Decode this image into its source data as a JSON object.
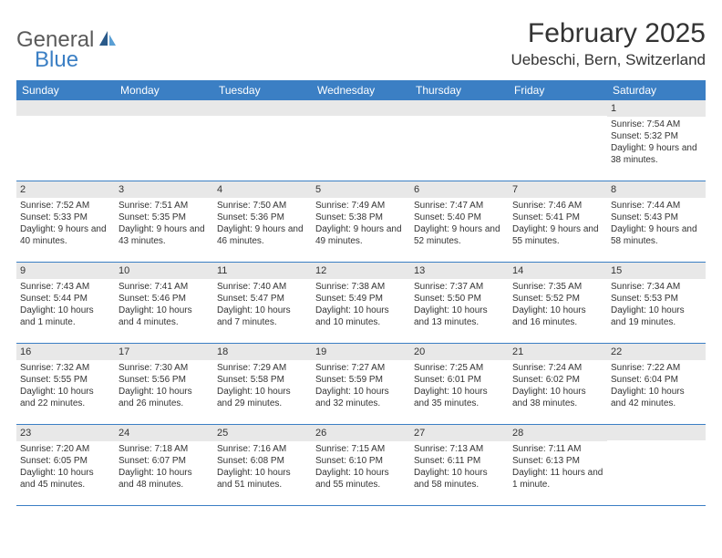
{
  "logo": {
    "general": "General",
    "blue": "Blue"
  },
  "title": {
    "month": "February 2025",
    "location": "Uebeschi, Bern, Switzerland"
  },
  "colors": {
    "header_bg": "#3b7fc4",
    "daynum_bg": "#e8e8e8",
    "text": "#333333",
    "logo_gray": "#5a5a5a",
    "logo_blue": "#3b7fc4"
  },
  "days_of_week": [
    "Sunday",
    "Monday",
    "Tuesday",
    "Wednesday",
    "Thursday",
    "Friday",
    "Saturday"
  ],
  "weeks": [
    [
      {
        "day": "",
        "sunrise": "",
        "sunset": "",
        "daylight": ""
      },
      {
        "day": "",
        "sunrise": "",
        "sunset": "",
        "daylight": ""
      },
      {
        "day": "",
        "sunrise": "",
        "sunset": "",
        "daylight": ""
      },
      {
        "day": "",
        "sunrise": "",
        "sunset": "",
        "daylight": ""
      },
      {
        "day": "",
        "sunrise": "",
        "sunset": "",
        "daylight": ""
      },
      {
        "day": "",
        "sunrise": "",
        "sunset": "",
        "daylight": ""
      },
      {
        "day": "1",
        "sunrise": "Sunrise: 7:54 AM",
        "sunset": "Sunset: 5:32 PM",
        "daylight": "Daylight: 9 hours and 38 minutes."
      }
    ],
    [
      {
        "day": "2",
        "sunrise": "Sunrise: 7:52 AM",
        "sunset": "Sunset: 5:33 PM",
        "daylight": "Daylight: 9 hours and 40 minutes."
      },
      {
        "day": "3",
        "sunrise": "Sunrise: 7:51 AM",
        "sunset": "Sunset: 5:35 PM",
        "daylight": "Daylight: 9 hours and 43 minutes."
      },
      {
        "day": "4",
        "sunrise": "Sunrise: 7:50 AM",
        "sunset": "Sunset: 5:36 PM",
        "daylight": "Daylight: 9 hours and 46 minutes."
      },
      {
        "day": "5",
        "sunrise": "Sunrise: 7:49 AM",
        "sunset": "Sunset: 5:38 PM",
        "daylight": "Daylight: 9 hours and 49 minutes."
      },
      {
        "day": "6",
        "sunrise": "Sunrise: 7:47 AM",
        "sunset": "Sunset: 5:40 PM",
        "daylight": "Daylight: 9 hours and 52 minutes."
      },
      {
        "day": "7",
        "sunrise": "Sunrise: 7:46 AM",
        "sunset": "Sunset: 5:41 PM",
        "daylight": "Daylight: 9 hours and 55 minutes."
      },
      {
        "day": "8",
        "sunrise": "Sunrise: 7:44 AM",
        "sunset": "Sunset: 5:43 PM",
        "daylight": "Daylight: 9 hours and 58 minutes."
      }
    ],
    [
      {
        "day": "9",
        "sunrise": "Sunrise: 7:43 AM",
        "sunset": "Sunset: 5:44 PM",
        "daylight": "Daylight: 10 hours and 1 minute."
      },
      {
        "day": "10",
        "sunrise": "Sunrise: 7:41 AM",
        "sunset": "Sunset: 5:46 PM",
        "daylight": "Daylight: 10 hours and 4 minutes."
      },
      {
        "day": "11",
        "sunrise": "Sunrise: 7:40 AM",
        "sunset": "Sunset: 5:47 PM",
        "daylight": "Daylight: 10 hours and 7 minutes."
      },
      {
        "day": "12",
        "sunrise": "Sunrise: 7:38 AM",
        "sunset": "Sunset: 5:49 PM",
        "daylight": "Daylight: 10 hours and 10 minutes."
      },
      {
        "day": "13",
        "sunrise": "Sunrise: 7:37 AM",
        "sunset": "Sunset: 5:50 PM",
        "daylight": "Daylight: 10 hours and 13 minutes."
      },
      {
        "day": "14",
        "sunrise": "Sunrise: 7:35 AM",
        "sunset": "Sunset: 5:52 PM",
        "daylight": "Daylight: 10 hours and 16 minutes."
      },
      {
        "day": "15",
        "sunrise": "Sunrise: 7:34 AM",
        "sunset": "Sunset: 5:53 PM",
        "daylight": "Daylight: 10 hours and 19 minutes."
      }
    ],
    [
      {
        "day": "16",
        "sunrise": "Sunrise: 7:32 AM",
        "sunset": "Sunset: 5:55 PM",
        "daylight": "Daylight: 10 hours and 22 minutes."
      },
      {
        "day": "17",
        "sunrise": "Sunrise: 7:30 AM",
        "sunset": "Sunset: 5:56 PM",
        "daylight": "Daylight: 10 hours and 26 minutes."
      },
      {
        "day": "18",
        "sunrise": "Sunrise: 7:29 AM",
        "sunset": "Sunset: 5:58 PM",
        "daylight": "Daylight: 10 hours and 29 minutes."
      },
      {
        "day": "19",
        "sunrise": "Sunrise: 7:27 AM",
        "sunset": "Sunset: 5:59 PM",
        "daylight": "Daylight: 10 hours and 32 minutes."
      },
      {
        "day": "20",
        "sunrise": "Sunrise: 7:25 AM",
        "sunset": "Sunset: 6:01 PM",
        "daylight": "Daylight: 10 hours and 35 minutes."
      },
      {
        "day": "21",
        "sunrise": "Sunrise: 7:24 AM",
        "sunset": "Sunset: 6:02 PM",
        "daylight": "Daylight: 10 hours and 38 minutes."
      },
      {
        "day": "22",
        "sunrise": "Sunrise: 7:22 AM",
        "sunset": "Sunset: 6:04 PM",
        "daylight": "Daylight: 10 hours and 42 minutes."
      }
    ],
    [
      {
        "day": "23",
        "sunrise": "Sunrise: 7:20 AM",
        "sunset": "Sunset: 6:05 PM",
        "daylight": "Daylight: 10 hours and 45 minutes."
      },
      {
        "day": "24",
        "sunrise": "Sunrise: 7:18 AM",
        "sunset": "Sunset: 6:07 PM",
        "daylight": "Daylight: 10 hours and 48 minutes."
      },
      {
        "day": "25",
        "sunrise": "Sunrise: 7:16 AM",
        "sunset": "Sunset: 6:08 PM",
        "daylight": "Daylight: 10 hours and 51 minutes."
      },
      {
        "day": "26",
        "sunrise": "Sunrise: 7:15 AM",
        "sunset": "Sunset: 6:10 PM",
        "daylight": "Daylight: 10 hours and 55 minutes."
      },
      {
        "day": "27",
        "sunrise": "Sunrise: 7:13 AM",
        "sunset": "Sunset: 6:11 PM",
        "daylight": "Daylight: 10 hours and 58 minutes."
      },
      {
        "day": "28",
        "sunrise": "Sunrise: 7:11 AM",
        "sunset": "Sunset: 6:13 PM",
        "daylight": "Daylight: 11 hours and 1 minute."
      },
      {
        "day": "",
        "sunrise": "",
        "sunset": "",
        "daylight": ""
      }
    ]
  ]
}
